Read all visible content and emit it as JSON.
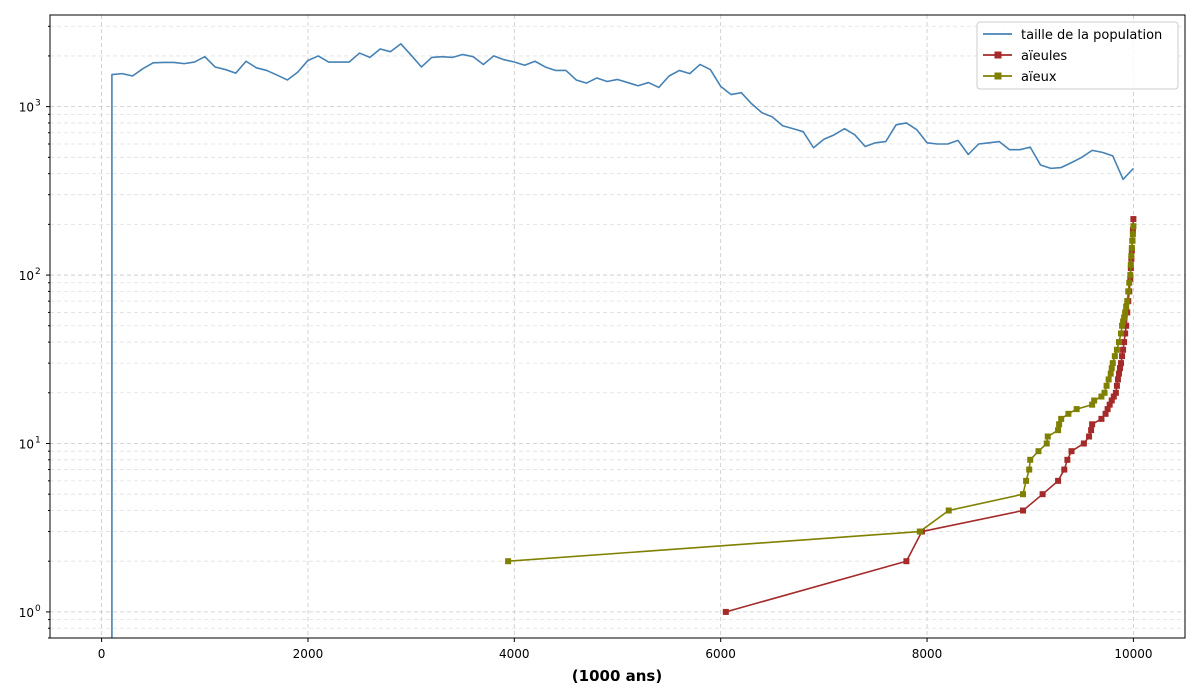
{
  "chart_data": {
    "type": "line",
    "title": "",
    "xlabel": "(1000 ans)",
    "ylabel": "",
    "yscale": "log",
    "xlim": [
      -500,
      10500
    ],
    "ylim": [
      0.7,
      3500
    ],
    "x_ticks": [
      0,
      2000,
      4000,
      6000,
      8000,
      10000
    ],
    "y_ticks": [
      1,
      10,
      100,
      1000
    ],
    "y_tick_labels": [
      "10",
      "10",
      "10",
      "10"
    ],
    "y_tick_exponents": [
      "0",
      "1",
      "2",
      "3"
    ],
    "grid": true,
    "legend_position": "top-right",
    "series": [
      {
        "name": "taille de la population",
        "color": "#4682b4",
        "marker": "none",
        "x": [
          100,
          100,
          200,
          300,
          400,
          500,
          600,
          700,
          800,
          900,
          1000,
          1100,
          1200,
          1300,
          1400,
          1500,
          1600,
          1700,
          1800,
          1900,
          2000,
          2100,
          2200,
          2300,
          2400,
          2500,
          2600,
          2700,
          2800,
          2900,
          3000,
          3100,
          3200,
          3300,
          3400,
          3500,
          3600,
          3700,
          3800,
          3900,
          4000,
          4100,
          4200,
          4300,
          4400,
          4500,
          4600,
          4700,
          4800,
          4900,
          5000,
          5100,
          5200,
          5300,
          5400,
          5500,
          5600,
          5700,
          5800,
          5900,
          6000,
          6100,
          6200,
          6300,
          6400,
          6500,
          6600,
          6700,
          6800,
          6900,
          7000,
          7100,
          7200,
          7300,
          7400,
          7500,
          7600,
          7700,
          7800,
          7900,
          8000,
          8100,
          8200,
          8300,
          8400,
          8500,
          8600,
          8700,
          8800,
          8900,
          9000,
          9100,
          9200,
          9300,
          9400,
          9500,
          9600,
          9700,
          9800,
          9900,
          10000
        ],
        "y": [
          0.5,
          1550,
          1570,
          1520,
          1680,
          1820,
          1830,
          1830,
          1800,
          1840,
          1980,
          1720,
          1660,
          1580,
          1860,
          1700,
          1640,
          1540,
          1440,
          1600,
          1880,
          2000,
          1840,
          1840,
          1840,
          2080,
          1960,
          2200,
          2120,
          2360,
          2020,
          1720,
          1960,
          1980,
          1960,
          2040,
          1980,
          1780,
          2000,
          1900,
          1840,
          1760,
          1860,
          1720,
          1640,
          1640,
          1440,
          1380,
          1480,
          1410,
          1450,
          1390,
          1330,
          1390,
          1300,
          1520,
          1640,
          1570,
          1780,
          1660,
          1320,
          1180,
          1210,
          1040,
          920,
          870,
          770,
          740,
          710,
          570,
          640,
          680,
          740,
          680,
          580,
          610,
          620,
          780,
          800,
          730,
          610,
          600,
          600,
          630,
          520,
          600,
          610,
          620,
          555,
          555,
          575,
          450,
          430,
          435,
          465,
          500,
          550,
          535,
          510,
          370,
          430
        ]
      },
      {
        "name": "aïeules",
        "color": "#a52a2a",
        "marker": "square",
        "x": [
          6050,
          7800,
          7950,
          8930,
          9120,
          9270,
          9330,
          9360,
          9400,
          9520,
          9570,
          9590,
          9600,
          9690,
          9730,
          9750,
          9770,
          9790,
          9810,
          9830,
          9840,
          9850,
          9860,
          9870,
          9880,
          9890,
          9900,
          9910,
          9920,
          9930,
          9940,
          9950,
          9960,
          9970,
          9975,
          9980,
          9985,
          9990,
          9995,
          10000
        ],
        "y": [
          1,
          2,
          3,
          4,
          5,
          6,
          7,
          8,
          9,
          10,
          11,
          12,
          13,
          14,
          15,
          16,
          17,
          18,
          19,
          20,
          22,
          24,
          26,
          28,
          30,
          33,
          36,
          40,
          45,
          50,
          60,
          70,
          80,
          95,
          110,
          125,
          140,
          160,
          185,
          215
        ]
      },
      {
        "name": "aïeux",
        "color": "#808000",
        "marker": "square",
        "x": [
          3940,
          7930,
          8210,
          8930,
          8960,
          8990,
          9000,
          9080,
          9160,
          9170,
          9270,
          9280,
          9300,
          9370,
          9450,
          9600,
          9620,
          9690,
          9720,
          9740,
          9760,
          9780,
          9790,
          9800,
          9820,
          9840,
          9860,
          9880,
          9890,
          9900,
          9910,
          9920,
          9930,
          9940,
          9950,
          9960,
          9970,
          9975,
          9980,
          9985,
          9990,
          9995,
          10000
        ],
        "y": [
          2,
          3,
          4,
          5,
          6,
          7,
          8,
          9,
          10,
          11,
          12,
          13,
          14,
          15,
          16,
          17,
          18,
          19,
          20,
          22,
          24,
          26,
          28,
          30,
          33,
          36,
          40,
          45,
          50,
          53,
          56,
          60,
          65,
          70,
          80,
          90,
          100,
          115,
          130,
          145,
          160,
          175,
          195
        ]
      }
    ]
  }
}
